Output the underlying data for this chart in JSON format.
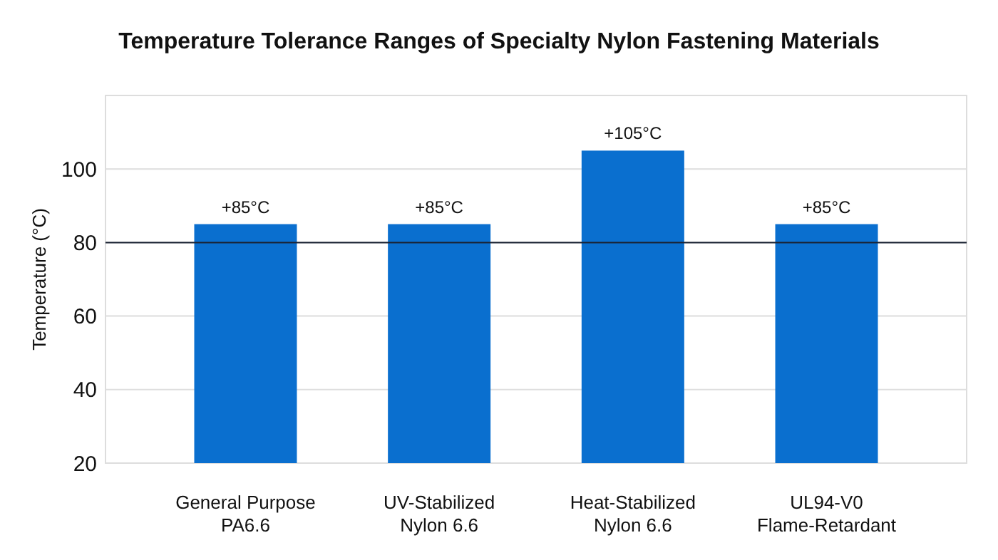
{
  "chart_data": {
    "type": "bar",
    "title": "Temperature Tolerance Ranges of Specialty Nylon Fastening Materials",
    "ylabel": "Temperature (°C)",
    "categories": [
      "General Purpose\nPA6.6",
      "UV-Stabilized\nNylon 6.6",
      "Heat-Stabilized\nNylon 6.6",
      "UL94-V0\nFlame-Retardant"
    ],
    "values": [
      85,
      85,
      105,
      85
    ],
    "value_labels": [
      "+85°C",
      "+85°C",
      "+105°C",
      "+85°C"
    ],
    "color": "#0a6fcf",
    "ylim": [
      20,
      120
    ],
    "yticks": [
      20,
      40,
      60,
      80,
      100
    ],
    "grid": "y",
    "ref_lines": [
      {
        "axis": "y",
        "value": 80,
        "color": "#1a2233"
      }
    ]
  }
}
